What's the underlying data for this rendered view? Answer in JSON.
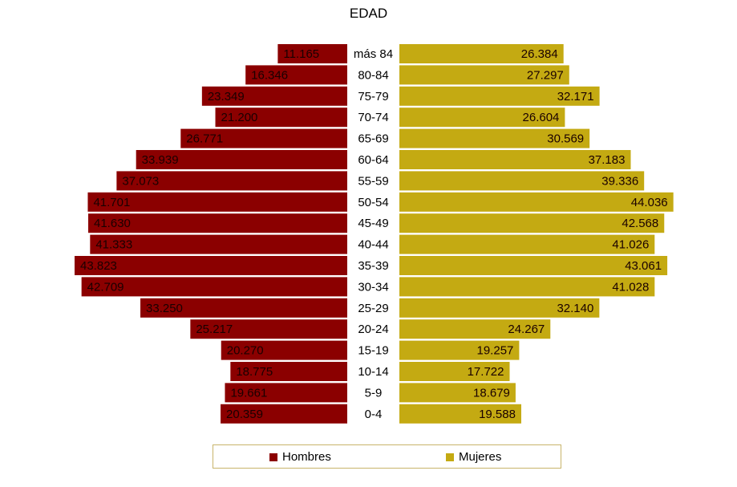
{
  "chart_data": {
    "type": "bar",
    "orientation": "horizontal-population-pyramid",
    "title": "EDAD",
    "categories": [
      "más 84",
      "80-84",
      "75-79",
      "70-74",
      "65-69",
      "60-64",
      "55-59",
      "50-54",
      "45-49",
      "40-44",
      "35-39",
      "30-34",
      "25-29",
      "20-24",
      "15-19",
      "10-14",
      "5-9",
      "0-4"
    ],
    "series": [
      {
        "name": "Hombres",
        "color": "#8b0000",
        "values": [
          11165,
          16346,
          23349,
          21200,
          26771,
          33939,
          37073,
          41701,
          41630,
          41333,
          43823,
          42709,
          33250,
          25217,
          20270,
          18775,
          19661,
          20359
        ],
        "labels": [
          "11.165",
          "16.346",
          "23.349",
          "21.200",
          "26.771",
          "33.939",
          "37.073",
          "41.701",
          "41.630",
          "41.333",
          "43.823",
          "42.709",
          "33.250",
          "25.217",
          "20.270",
          "18.775",
          "19.661",
          "20.359"
        ]
      },
      {
        "name": "Mujeres",
        "color": "#c4aa12",
        "values": [
          26384,
          27297,
          32171,
          26604,
          30569,
          37183,
          39336,
          44036,
          42568,
          41026,
          43061,
          41028,
          32140,
          24267,
          19257,
          17722,
          18679,
          19588
        ],
        "labels": [
          "26.384",
          "27.297",
          "32.171",
          "26.604",
          "30.569",
          "37.183",
          "39.336",
          "44.036",
          "42.568",
          "41.026",
          "43.061",
          "41.028",
          "32.140",
          "24.267",
          "19.257",
          "17.722",
          "18.679",
          "19.588"
        ]
      }
    ],
    "legend_position": "bottom",
    "grid": false
  },
  "legend": {
    "hombres_label": "Hombres",
    "mujeres_label": "Mujeres"
  }
}
